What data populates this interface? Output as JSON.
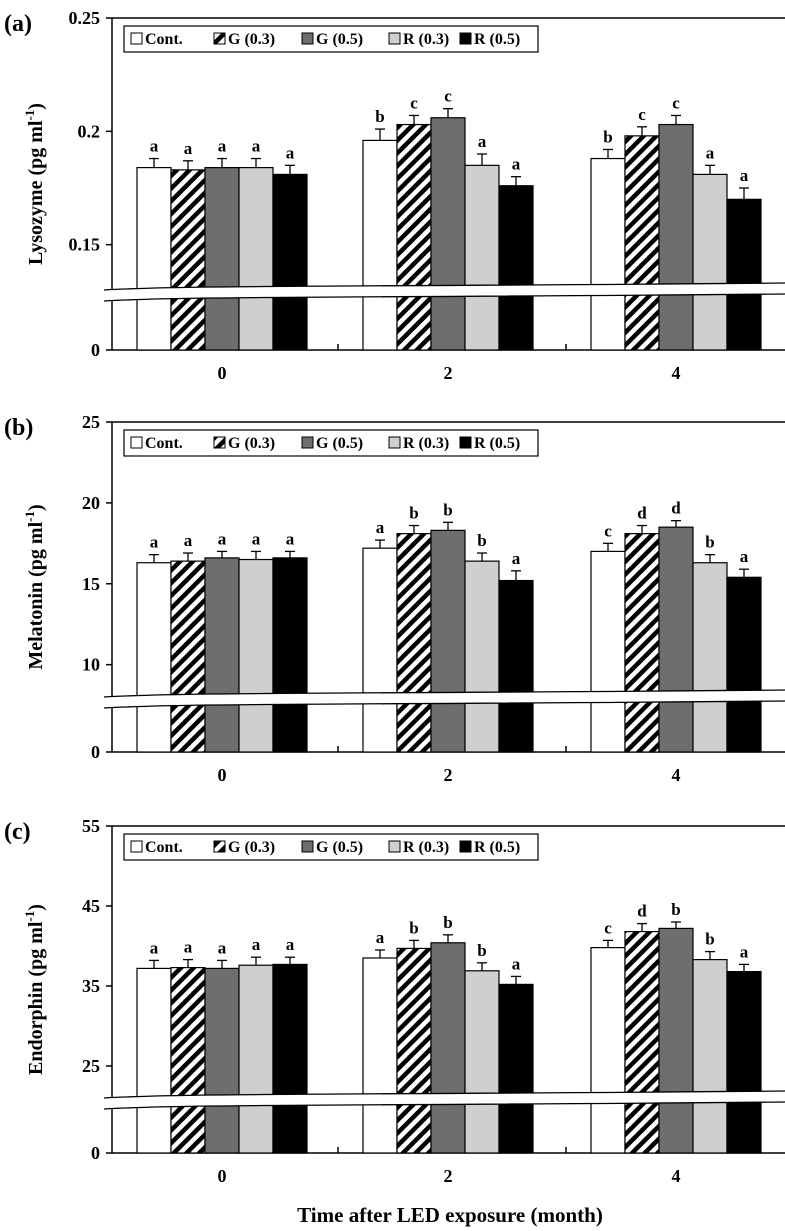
{
  "figure": {
    "xlabel": "Time after LED exposure (month)",
    "legend": {
      "placement": "top-left",
      "entries": [
        {
          "label": "Cont.",
          "pattern": "white"
        },
        {
          "label": "G (0.3)",
          "pattern": "hatch"
        },
        {
          "label": "G (0.5)",
          "pattern": "darkgray"
        },
        {
          "label": "R (0.3)",
          "pattern": "lightgray"
        },
        {
          "label": "R (0.5)",
          "pattern": "black"
        }
      ]
    },
    "colors": {
      "Cont.": "#ffffff",
      "G (0.3)": "hatch",
      "G (0.5)": "#6e6e6e",
      "R (0.3)": "#cfcfcf",
      "R (0.5)": "#000000"
    }
  },
  "chart_data": [
    {
      "type": "bar",
      "panel_label": "(a)",
      "ylabel": "Lysozyme (pg ml",
      "ylabel_sup": "-1",
      "ylabel_close": ")",
      "categories": [
        "0",
        "2",
        "4"
      ],
      "ylim": [
        0.13,
        0.25
      ],
      "axis_break": true,
      "yticks": [
        {
          "value": 0.25,
          "label": "0.25"
        },
        {
          "value": 0.2,
          "label": "0.2"
        },
        {
          "value": 0.15,
          "label": "0.15"
        }
      ],
      "zero_label": "0",
      "series": [
        {
          "name": "Cont.",
          "values": [
            0.184,
            0.196,
            0.188
          ],
          "errors": [
            0.004,
            0.005,
            0.004
          ],
          "letters": [
            "a",
            "b",
            "b"
          ]
        },
        {
          "name": "G (0.3)",
          "values": [
            0.183,
            0.203,
            0.198
          ],
          "errors": [
            0.004,
            0.004,
            0.004
          ],
          "letters": [
            "a",
            "c",
            "c"
          ]
        },
        {
          "name": "G (0.5)",
          "values": [
            0.184,
            0.206,
            0.203
          ],
          "errors": [
            0.004,
            0.004,
            0.004
          ],
          "letters": [
            "a",
            "c",
            "c"
          ]
        },
        {
          "name": "R (0.3)",
          "values": [
            0.184,
            0.185,
            0.181
          ],
          "errors": [
            0.004,
            0.005,
            0.004
          ],
          "letters": [
            "a",
            "a",
            "a"
          ]
        },
        {
          "name": "R (0.5)",
          "values": [
            0.181,
            0.176,
            0.17
          ],
          "errors": [
            0.004,
            0.004,
            0.005
          ],
          "letters": [
            "a",
            "a",
            "a"
          ]
        }
      ]
    },
    {
      "type": "bar",
      "panel_label": "(b)",
      "ylabel": "Melatonin (pg ml",
      "ylabel_sup": "-1",
      "ylabel_close": ")",
      "categories": [
        "0",
        "2",
        "4"
      ],
      "ylim": [
        8,
        25
      ],
      "axis_break": true,
      "yticks": [
        {
          "value": 25,
          "label": "25"
        },
        {
          "value": 20,
          "label": "20"
        },
        {
          "value": 15,
          "label": "15"
        },
        {
          "value": 10,
          "label": "10"
        }
      ],
      "zero_label": "0",
      "series": [
        {
          "name": "Cont.",
          "values": [
            16.3,
            17.2,
            17.0
          ],
          "errors": [
            0.5,
            0.5,
            0.5
          ],
          "letters": [
            "a",
            "a",
            "c"
          ]
        },
        {
          "name": "G (0.3)",
          "values": [
            16.4,
            18.1,
            18.1
          ],
          "errors": [
            0.5,
            0.5,
            0.5
          ],
          "letters": [
            "a",
            "b",
            "d"
          ]
        },
        {
          "name": "G (0.5)",
          "values": [
            16.6,
            18.3,
            18.5
          ],
          "errors": [
            0.4,
            0.5,
            0.4
          ],
          "letters": [
            "a",
            "b",
            "d"
          ]
        },
        {
          "name": "R (0.3)",
          "values": [
            16.5,
            16.4,
            16.3
          ],
          "errors": [
            0.5,
            0.5,
            0.5
          ],
          "letters": [
            "a",
            "b",
            "b"
          ]
        },
        {
          "name": "R (0.5)",
          "values": [
            16.6,
            15.2,
            15.4
          ],
          "errors": [
            0.4,
            0.6,
            0.5
          ],
          "letters": [
            "a",
            "a",
            "a"
          ]
        }
      ]
    },
    {
      "type": "bar",
      "panel_label": "(c)",
      "ylabel": "Endorphin (pg ml",
      "ylabel_sup": "-1",
      "ylabel_close": ")",
      "categories": [
        "0",
        "2",
        "4"
      ],
      "ylim": [
        21,
        55
      ],
      "axis_break": true,
      "yticks": [
        {
          "value": 55,
          "label": "55"
        },
        {
          "value": 45,
          "label": "45"
        },
        {
          "value": 35,
          "label": "35"
        },
        {
          "value": 25,
          "label": "25"
        }
      ],
      "zero_label": "0",
      "series": [
        {
          "name": "Cont.",
          "values": [
            37.2,
            38.5,
            39.8
          ],
          "errors": [
            1.0,
            1.0,
            0.9
          ],
          "letters": [
            "a",
            "a",
            "c"
          ]
        },
        {
          "name": "G (0.3)",
          "values": [
            37.3,
            39.7,
            41.8
          ],
          "errors": [
            1.0,
            1.0,
            1.0
          ],
          "letters": [
            "a",
            "b",
            "d"
          ]
        },
        {
          "name": "G (0.5)",
          "values": [
            37.2,
            40.4,
            42.2
          ],
          "errors": [
            1.0,
            1.0,
            0.8
          ],
          "letters": [
            "a",
            "b",
            "b"
          ]
        },
        {
          "name": "R (0.3)",
          "values": [
            37.6,
            36.9,
            38.3
          ],
          "errors": [
            1.0,
            1.0,
            1.0
          ],
          "letters": [
            "a",
            "b",
            "b"
          ]
        },
        {
          "name": "R (0.5)",
          "values": [
            37.7,
            35.2,
            36.8
          ],
          "errors": [
            0.9,
            1.0,
            0.9
          ],
          "letters": [
            "a",
            "a",
            "a"
          ]
        }
      ]
    }
  ]
}
